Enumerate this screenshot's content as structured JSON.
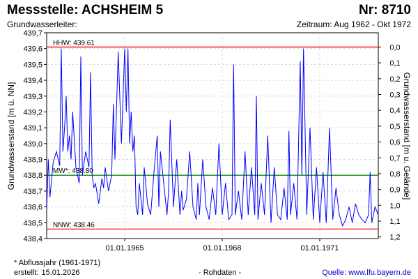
{
  "header": {
    "title": "Messstelle: ACHSHEIM 5",
    "number": "Nr: 8710",
    "aquifer": "Grundwasserleiter:",
    "period": "Zeitraum: Aug 1962 - Okt 1972"
  },
  "footer": {
    "footnote": "* Abflussjahr (1961-1971)",
    "created_label": "erstellt:",
    "created_date": "15.01.2026",
    "raw_data": "- Rohdaten -",
    "source": "Quelle: www.lfu.bayern.de"
  },
  "chart_data": {
    "type": "line",
    "ylabel": "Grundwasserstand [m ü. NN]",
    "y2label": "Grundwasserstand [m u. Gelände]",
    "ylim": [
      438.4,
      439.7
    ],
    "y_ticks": [
      "438,4",
      "438,5",
      "438,6",
      "438,7",
      "438,8",
      "438,9",
      "439,0",
      "439,1",
      "439,2",
      "439,3",
      "439,4",
      "439,5",
      "439,6",
      "439,7"
    ],
    "y2_ticks": [
      "0,0",
      "0,1",
      "0,2",
      "0,3",
      "0,4",
      "0,5",
      "0,6",
      "0,7",
      "0,8",
      "0,9",
      "1,0",
      "1,1",
      "1,2"
    ],
    "x_ticks": [
      "01.01.1965",
      "01.01.1968",
      "01.01.1971"
    ],
    "x_tick_values": [
      1965.0,
      1968.0,
      1971.0
    ],
    "xlim": [
      1962.6,
      1972.8
    ],
    "grid": true,
    "reference_lines": [
      {
        "label": "HHW: 439.61",
        "value": 439.61,
        "color": "#ff0000"
      },
      {
        "label": "MW*: 438.80",
        "value": 438.8,
        "color": "#008000"
      },
      {
        "label": "NNW: 438.46",
        "value": 438.46,
        "color": "#ff0000"
      }
    ],
    "series": [
      {
        "color": "#0000ff",
        "x": [
          1962.6,
          1962.65,
          1962.7,
          1962.8,
          1962.9,
          1963.0,
          1963.05,
          1963.1,
          1963.15,
          1963.2,
          1963.25,
          1963.3,
          1963.35,
          1963.4,
          1963.5,
          1963.6,
          1963.65,
          1963.7,
          1963.8,
          1963.9,
          1963.95,
          1964.0,
          1964.05,
          1964.1,
          1964.2,
          1964.25,
          1964.3,
          1964.35,
          1964.4,
          1964.5,
          1964.6,
          1964.65,
          1964.7,
          1964.8,
          1964.9,
          1965.0,
          1965.05,
          1965.1,
          1965.15,
          1965.2,
          1965.25,
          1965.3,
          1965.35,
          1965.4,
          1965.45,
          1965.5,
          1965.55,
          1965.6,
          1965.7,
          1965.8,
          1965.9,
          1966.0,
          1966.05,
          1966.1,
          1966.2,
          1966.3,
          1966.35,
          1966.4,
          1966.5,
          1966.6,
          1966.7,
          1966.75,
          1966.8,
          1966.9,
          1967.0,
          1967.1,
          1967.2,
          1967.25,
          1967.3,
          1967.4,
          1967.5,
          1967.6,
          1967.7,
          1967.8,
          1967.9,
          1968.0,
          1968.1,
          1968.2,
          1968.3,
          1968.35,
          1968.4,
          1968.5,
          1968.6,
          1968.7,
          1968.8,
          1968.9,
          1969.0,
          1969.05,
          1969.1,
          1969.2,
          1969.3,
          1969.4,
          1969.5,
          1969.6,
          1969.7,
          1969.8,
          1969.9,
          1970.0,
          1970.05,
          1970.1,
          1970.2,
          1970.3,
          1970.4,
          1970.45,
          1970.5,
          1970.6,
          1970.7,
          1970.8,
          1970.9,
          1971.0,
          1971.1,
          1971.2,
          1971.3,
          1971.4,
          1971.5,
          1971.6,
          1971.7,
          1971.8,
          1971.9,
          1972.0,
          1972.1,
          1972.2,
          1972.3,
          1972.4,
          1972.5,
          1972.55,
          1972.6,
          1972.7,
          1972.8
        ],
        "y": [
          438.58,
          438.9,
          438.66,
          438.88,
          438.95,
          438.86,
          439.6,
          438.95,
          439.1,
          439.3,
          438.95,
          439.05,
          438.9,
          439.2,
          438.85,
          438.75,
          439.55,
          438.8,
          438.95,
          438.85,
          439.45,
          438.8,
          438.72,
          438.75,
          438.62,
          438.7,
          438.78,
          438.72,
          438.85,
          438.7,
          438.8,
          439.25,
          438.9,
          439.58,
          439.0,
          439.6,
          439.2,
          439.6,
          439.0,
          439.2,
          438.95,
          439.05,
          438.6,
          438.55,
          438.75,
          438.65,
          438.55,
          438.85,
          438.62,
          438.55,
          438.82,
          439.05,
          438.6,
          438.95,
          438.75,
          438.55,
          438.7,
          439.15,
          438.6,
          438.9,
          438.55,
          438.7,
          438.58,
          438.65,
          438.95,
          438.6,
          438.52,
          438.75,
          438.55,
          438.9,
          438.6,
          438.52,
          438.72,
          438.55,
          439.0,
          438.55,
          438.75,
          438.52,
          438.55,
          439.5,
          438.55,
          438.7,
          438.52,
          438.95,
          438.55,
          438.85,
          438.55,
          439.3,
          438.52,
          438.75,
          438.55,
          439.05,
          438.5,
          438.85,
          438.55,
          438.52,
          438.72,
          438.52,
          439.08,
          438.55,
          438.75,
          438.52,
          439.52,
          438.8,
          439.6,
          438.55,
          439.1,
          438.52,
          438.85,
          438.5,
          438.82,
          438.5,
          439.1,
          438.52,
          438.72,
          438.55,
          438.48,
          438.52,
          438.6,
          438.5,
          438.62,
          438.55,
          438.52,
          438.5,
          438.55,
          438.82,
          438.5,
          438.6,
          438.55
        ]
      }
    ]
  }
}
